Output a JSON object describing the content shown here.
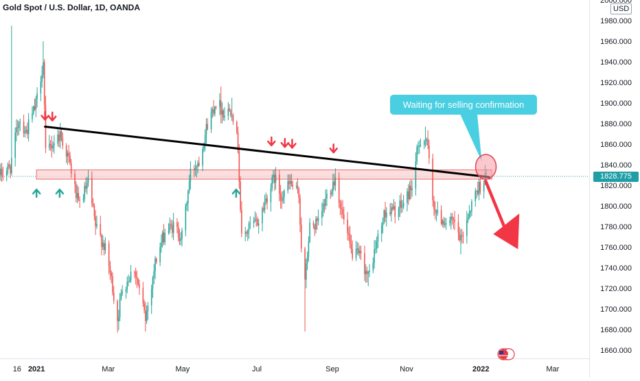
{
  "header": {
    "title": "Gold Spot / U.S. Dollar, 1D, OANDA",
    "currency": "USD"
  },
  "price_tag": "1828.775",
  "annotation": "Waiting for selling confirmation",
  "colors": {
    "up": "#26a69a",
    "down": "#ef5350",
    "zone_fill": "#fbd3d3",
    "zone_edge": "#e86a6a",
    "trendline": "#000000",
    "callout": "#49cfe1",
    "price_tag": "#1f9ea6",
    "down_arrow": "#f23645"
  },
  "chart_data": {
    "type": "candlestick",
    "title": "Gold Spot / U.S. Dollar, 1D, OANDA",
    "y_axis": {
      "label": "",
      "unit": "USD",
      "range": [
        1652,
        2000
      ],
      "ticks": [
        2000,
        1980,
        1960,
        1940,
        1920,
        1900,
        1880,
        1860,
        1840,
        1820,
        1800,
        1780,
        1760,
        1740,
        1720,
        1700,
        1680,
        1660
      ]
    },
    "x_axis": {
      "range": [
        "2020-12-02",
        "2022-03-31"
      ],
      "ticks": [
        {
          "label": "16",
          "date": "2020-12-16"
        },
        {
          "label": "2021",
          "date": "2021-01-01"
        },
        {
          "label": "Mar",
          "date": "2021-03-01"
        },
        {
          "label": "May",
          "date": "2021-05-01"
        },
        {
          "label": "Jul",
          "date": "2021-07-01"
        },
        {
          "label": "Sep",
          "date": "2021-09-01"
        },
        {
          "label": "Nov",
          "date": "2021-11-01"
        },
        {
          "label": "2022",
          "date": "2022-01-01"
        },
        {
          "label": "Mar",
          "date": "2022-03-01"
        }
      ]
    },
    "last_price": 1828.775,
    "price_path": [
      [
        "2020-12-02",
        1830
      ],
      [
        "2020-12-10",
        1838
      ],
      [
        "2020-12-17",
        1885
      ],
      [
        "2020-12-23",
        1872
      ],
      [
        "2020-12-31",
        1898
      ],
      [
        "2021-01-06",
        1940
      ],
      [
        "2021-01-08",
        1850
      ],
      [
        "2021-01-12",
        1858
      ],
      [
        "2021-01-20",
        1870
      ],
      [
        "2021-01-27",
        1845
      ],
      [
        "2021-02-04",
        1800
      ],
      [
        "2021-02-12",
        1822
      ],
      [
        "2021-02-18",
        1780
      ],
      [
        "2021-02-25",
        1762
      ],
      [
        "2021-03-02",
        1735
      ],
      [
        "2021-03-08",
        1690
      ],
      [
        "2021-03-12",
        1720
      ],
      [
        "2021-03-22",
        1740
      ],
      [
        "2021-03-31",
        1690
      ],
      [
        "2021-04-08",
        1745
      ],
      [
        "2021-04-16",
        1775
      ],
      [
        "2021-04-23",
        1780
      ],
      [
        "2021-04-30",
        1770
      ],
      [
        "2021-05-07",
        1832
      ],
      [
        "2021-05-14",
        1845
      ],
      [
        "2021-05-21",
        1880
      ],
      [
        "2021-05-28",
        1902
      ],
      [
        "2021-06-04",
        1890
      ],
      [
        "2021-06-10",
        1895
      ],
      [
        "2021-06-15",
        1858
      ],
      [
        "2021-06-18",
        1768
      ],
      [
        "2021-06-25",
        1780
      ],
      [
        "2021-07-02",
        1785
      ],
      [
        "2021-07-09",
        1810
      ],
      [
        "2021-07-15",
        1828
      ],
      [
        "2021-07-20",
        1810
      ],
      [
        "2021-07-28",
        1822
      ],
      [
        "2021-08-04",
        1810
      ],
      [
        "2021-08-06",
        1762
      ],
      [
        "2021-08-09",
        1725
      ],
      [
        "2021-08-13",
        1780
      ],
      [
        "2021-08-20",
        1782
      ],
      [
        "2021-08-27",
        1810
      ],
      [
        "2021-09-03",
        1828
      ],
      [
        "2021-09-08",
        1795
      ],
      [
        "2021-09-16",
        1755
      ],
      [
        "2021-09-24",
        1750
      ],
      [
        "2021-09-30",
        1730
      ],
      [
        "2021-10-06",
        1760
      ],
      [
        "2021-10-14",
        1795
      ],
      [
        "2021-10-22",
        1795
      ],
      [
        "2021-10-28",
        1800
      ],
      [
        "2021-11-05",
        1820
      ],
      [
        "2021-11-09",
        1850
      ],
      [
        "2021-11-12",
        1865
      ],
      [
        "2021-11-17",
        1865
      ],
      [
        "2021-11-22",
        1805
      ],
      [
        "2021-11-26",
        1790
      ],
      [
        "2021-12-03",
        1785
      ],
      [
        "2021-12-10",
        1782
      ],
      [
        "2021-12-15",
        1765
      ],
      [
        "2021-12-21",
        1792
      ],
      [
        "2021-12-28",
        1815
      ],
      [
        "2022-01-03",
        1826
      ],
      [
        "2022-01-05",
        1829
      ]
    ],
    "wick_highs": [
      {
        "date": "2020-12-11",
        "high": 1975
      },
      {
        "date": "2021-01-06",
        "high": 1960
      },
      {
        "date": "2021-01-07",
        "high": 1940
      },
      {
        "date": "2021-06-01",
        "high": 1916
      },
      {
        "date": "2021-06-10",
        "high": 1905
      },
      {
        "date": "2021-11-16",
        "high": 1877
      }
    ],
    "wick_lows": [
      {
        "date": "2021-03-08",
        "low": 1677
      },
      {
        "date": "2021-03-31",
        "low": 1678
      },
      {
        "date": "2021-08-09",
        "low": 1678
      },
      {
        "date": "2021-09-30",
        "low": 1722
      },
      {
        "date": "2021-12-15",
        "low": 1753
      }
    ],
    "resistance_zone": {
      "from": "2021-01-01",
      "to": "2022-01-10",
      "low": 1826,
      "high": 1835
    },
    "trendline": [
      [
        "2021-01-08",
        1877
      ],
      [
        "2022-01-08",
        1828
      ]
    ],
    "down_markers": [
      "2021-01-08",
      "2021-01-14",
      "2021-07-13",
      "2021-07-24",
      "2021-07-30",
      "2021-09-02"
    ],
    "up_markers": [
      "2021-01-01",
      "2021-01-20",
      "2021-06-14"
    ],
    "highlight_circle": {
      "date": "2022-01-04",
      "price": 1838
    },
    "projection_arrow": {
      "from": [
        "2022-01-05",
        1824
      ],
      "to": [
        "2022-01-27",
        1758
      ]
    }
  }
}
